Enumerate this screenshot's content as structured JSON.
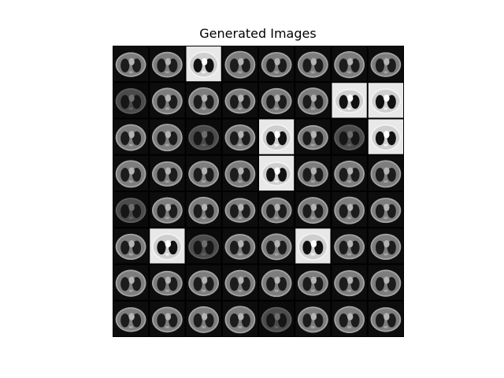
{
  "figure": {
    "title": "Generated Images"
  },
  "grid": {
    "rows": 8,
    "cols": 8,
    "background_color": "#000000",
    "content": "Generated chest CT slices (axial lung scans)",
    "tiles": [
      {
        "row": 0,
        "col": 0,
        "style": "gray"
      },
      {
        "row": 0,
        "col": 1,
        "style": "gray"
      },
      {
        "row": 0,
        "col": 2,
        "style": "bright"
      },
      {
        "row": 0,
        "col": 3,
        "style": "gray"
      },
      {
        "row": 0,
        "col": 4,
        "style": "gray"
      },
      {
        "row": 0,
        "col": 5,
        "style": "gray"
      },
      {
        "row": 0,
        "col": 6,
        "style": "gray"
      },
      {
        "row": 0,
        "col": 7,
        "style": "gray"
      },
      {
        "row": 1,
        "col": 0,
        "style": "dark"
      },
      {
        "row": 1,
        "col": 1,
        "style": "gray"
      },
      {
        "row": 1,
        "col": 2,
        "style": "gray"
      },
      {
        "row": 1,
        "col": 3,
        "style": "gray"
      },
      {
        "row": 1,
        "col": 4,
        "style": "gray"
      },
      {
        "row": 1,
        "col": 5,
        "style": "gray"
      },
      {
        "row": 1,
        "col": 6,
        "style": "bright"
      },
      {
        "row": 1,
        "col": 7,
        "style": "bright"
      },
      {
        "row": 2,
        "col": 0,
        "style": "gray"
      },
      {
        "row": 2,
        "col": 1,
        "style": "gray"
      },
      {
        "row": 2,
        "col": 2,
        "style": "dark"
      },
      {
        "row": 2,
        "col": 3,
        "style": "gray"
      },
      {
        "row": 2,
        "col": 4,
        "style": "bright"
      },
      {
        "row": 2,
        "col": 5,
        "style": "gray"
      },
      {
        "row": 2,
        "col": 6,
        "style": "dark"
      },
      {
        "row": 2,
        "col": 7,
        "style": "bright"
      },
      {
        "row": 3,
        "col": 0,
        "style": "gray"
      },
      {
        "row": 3,
        "col": 1,
        "style": "gray"
      },
      {
        "row": 3,
        "col": 2,
        "style": "gray"
      },
      {
        "row": 3,
        "col": 3,
        "style": "gray"
      },
      {
        "row": 3,
        "col": 4,
        "style": "bright"
      },
      {
        "row": 3,
        "col": 5,
        "style": "gray"
      },
      {
        "row": 3,
        "col": 6,
        "style": "gray"
      },
      {
        "row": 3,
        "col": 7,
        "style": "gray"
      },
      {
        "row": 4,
        "col": 0,
        "style": "dark"
      },
      {
        "row": 4,
        "col": 1,
        "style": "gray"
      },
      {
        "row": 4,
        "col": 2,
        "style": "gray"
      },
      {
        "row": 4,
        "col": 3,
        "style": "gray"
      },
      {
        "row": 4,
        "col": 4,
        "style": "gray"
      },
      {
        "row": 4,
        "col": 5,
        "style": "gray"
      },
      {
        "row": 4,
        "col": 6,
        "style": "gray"
      },
      {
        "row": 4,
        "col": 7,
        "style": "gray"
      },
      {
        "row": 5,
        "col": 0,
        "style": "gray"
      },
      {
        "row": 5,
        "col": 1,
        "style": "bright"
      },
      {
        "row": 5,
        "col": 2,
        "style": "dark"
      },
      {
        "row": 5,
        "col": 3,
        "style": "gray"
      },
      {
        "row": 5,
        "col": 4,
        "style": "gray"
      },
      {
        "row": 5,
        "col": 5,
        "style": "bright"
      },
      {
        "row": 5,
        "col": 6,
        "style": "gray"
      },
      {
        "row": 5,
        "col": 7,
        "style": "gray"
      },
      {
        "row": 6,
        "col": 0,
        "style": "gray"
      },
      {
        "row": 6,
        "col": 1,
        "style": "gray"
      },
      {
        "row": 6,
        "col": 2,
        "style": "gray"
      },
      {
        "row": 6,
        "col": 3,
        "style": "gray"
      },
      {
        "row": 6,
        "col": 4,
        "style": "gray"
      },
      {
        "row": 6,
        "col": 5,
        "style": "gray"
      },
      {
        "row": 6,
        "col": 6,
        "style": "gray"
      },
      {
        "row": 6,
        "col": 7,
        "style": "gray"
      },
      {
        "row": 7,
        "col": 0,
        "style": "gray"
      },
      {
        "row": 7,
        "col": 1,
        "style": "gray"
      },
      {
        "row": 7,
        "col": 2,
        "style": "gray"
      },
      {
        "row": 7,
        "col": 3,
        "style": "gray"
      },
      {
        "row": 7,
        "col": 4,
        "style": "dark"
      },
      {
        "row": 7,
        "col": 5,
        "style": "gray"
      },
      {
        "row": 7,
        "col": 6,
        "style": "gray"
      },
      {
        "row": 7,
        "col": 7,
        "style": "gray"
      }
    ]
  },
  "colors": {
    "page_background": "#ffffff",
    "title_text": "#000000",
    "grid_background": "#000000"
  }
}
